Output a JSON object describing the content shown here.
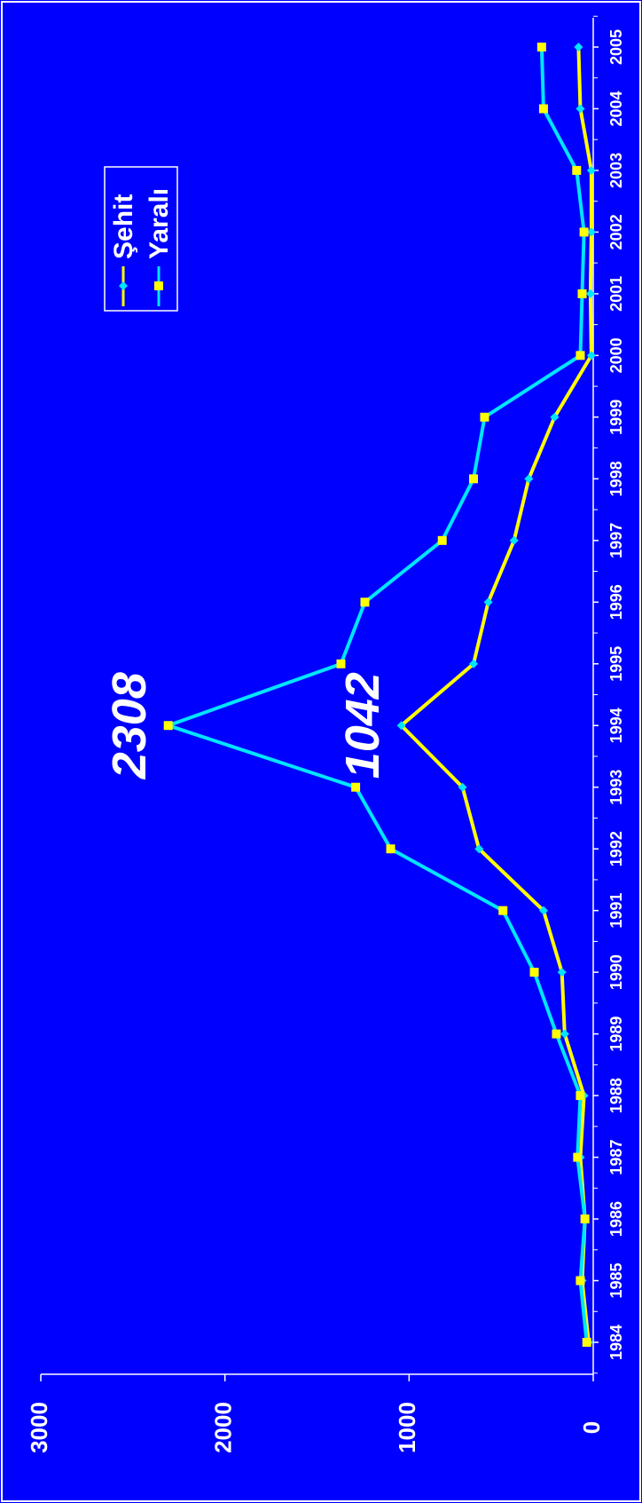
{
  "chart_data": {
    "type": "line",
    "orientation": "rotated-90-clockwise",
    "title": "",
    "xlabel": "",
    "ylabel": "",
    "x": [
      "1984",
      "1985",
      "1986",
      "1987",
      "1988",
      "1989",
      "1990",
      "1991",
      "1992",
      "1993",
      "1994",
      "1995",
      "1996",
      "1997",
      "1998",
      "1999",
      "2000",
      "2001",
      "2002",
      "2003",
      "2004",
      "2005"
    ],
    "ylim": [
      0,
      3000
    ],
    "yticks": [
      "0",
      "1000",
      "2000",
      "3000"
    ],
    "series": [
      {
        "name": "Şehit",
        "line_color": "#ffff00",
        "marker_color": "#00e5ff",
        "marker": "diamond",
        "values": [
          25,
          60,
          45,
          70,
          50,
          155,
          170,
          270,
          620,
          710,
          1042,
          650,
          570,
          430,
          350,
          210,
          10,
          15,
          10,
          10,
          70,
          80
        ]
      },
      {
        "name": "Yaralı",
        "line_color": "#00e5ff",
        "marker_color": "#ffff00",
        "marker": "square",
        "values": [
          35,
          70,
          45,
          85,
          70,
          200,
          320,
          490,
          1100,
          1290,
          2308,
          1370,
          1240,
          820,
          650,
          590,
          70,
          60,
          50,
          90,
          270,
          280
        ]
      }
    ],
    "annotations": [
      {
        "text": "2308",
        "series": "Yaralı",
        "x": "1994"
      },
      {
        "text": "1042",
        "series": "Şehit",
        "x": "1994"
      }
    ],
    "legend": {
      "placement": "top-center",
      "entries": [
        "Şehit",
        "Yaralı"
      ]
    },
    "grid": false
  }
}
